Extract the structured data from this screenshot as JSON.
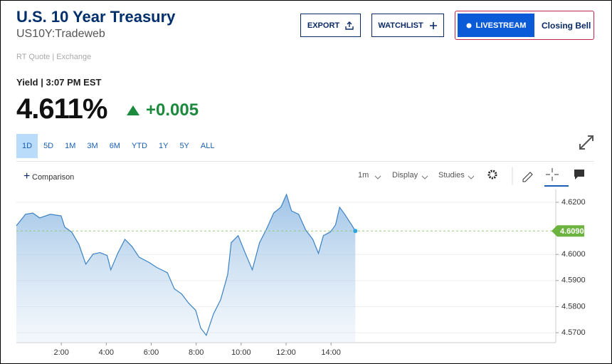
{
  "title": "U.S. 10 Year Treasury",
  "symbol": "US10Y:Tradeweb",
  "quote_source": "RT Quote | Exchange",
  "yield_label": "Yield | 3:07 PM EST",
  "price": "4.611%",
  "change": "+0.005",
  "buttons": {
    "export": "EXPORT",
    "watchlist": "WATCHLIST",
    "livestream": "LIVESTREAM",
    "closing_bell": "Closing Bell"
  },
  "ranges": [
    "1D",
    "5D",
    "1M",
    "3M",
    "6M",
    "YTD",
    "1Y",
    "5Y",
    "ALL"
  ],
  "toolbar": {
    "comparison": "Comparison",
    "interval": "1m",
    "display": "Display",
    "studies": "Studies"
  },
  "chart_data": {
    "type": "line",
    "color": "#3b82c4",
    "x": [
      0.0,
      0.41,
      0.73,
      1.04,
      1.51,
      1.99,
      2.15,
      2.46,
      2.78,
      3.09,
      3.41,
      3.72,
      4.04,
      4.2,
      4.51,
      4.83,
      5.14,
      5.46,
      5.93,
      6.25,
      6.72,
      7.03,
      7.35,
      7.67,
      7.98,
      8.2,
      8.45,
      8.77,
      9.09,
      9.4,
      9.56,
      9.87,
      10.19,
      10.5,
      10.82,
      11.14,
      11.45,
      11.77,
      12.02,
      12.24,
      12.56,
      12.87,
      13.19,
      13.44,
      13.66,
      13.97,
      14.2,
      14.38,
      14.61,
      14.92,
      15.08
    ],
    "values": [
      4.611,
      4.6154,
      4.6159,
      4.614,
      4.6154,
      4.6148,
      4.6105,
      4.6086,
      4.6039,
      4.5963,
      4.6001,
      4.6007,
      4.5996,
      4.5941,
      4.6004,
      4.6058,
      4.6031,
      4.599,
      4.5968,
      4.595,
      4.593,
      4.5868,
      4.5849,
      4.5813,
      4.5786,
      4.5718,
      4.569,
      4.5772,
      4.5827,
      4.5922,
      4.6045,
      4.6072,
      4.6004,
      4.5941,
      4.6045,
      4.6099,
      4.6159,
      4.6181,
      4.623,
      4.6167,
      4.6154,
      4.6094,
      4.6058,
      4.6004,
      4.6072,
      4.6086,
      4.6113,
      4.6181,
      4.6154,
      4.6113,
      4.609
    ],
    "xlim": [
      0,
      24
    ],
    "xticks": [
      {
        "value": 2,
        "label": "2:00"
      },
      {
        "value": 4,
        "label": "4:00"
      },
      {
        "value": 6,
        "label": "6:00"
      },
      {
        "value": 8,
        "label": "8:00"
      },
      {
        "value": 10,
        "label": "10:00"
      },
      {
        "value": 12,
        "label": "12:00"
      },
      {
        "value": 14,
        "label": "14:00"
      }
    ],
    "ylim": [
      4.5662,
      4.6249
    ],
    "yticks": [
      {
        "value": 4.62,
        "label": "4.6200"
      },
      {
        "value": 4.6,
        "label": "4.6000"
      },
      {
        "value": 4.59,
        "label": "4.5900"
      },
      {
        "value": 4.58,
        "label": "4.5800"
      },
      {
        "value": 4.57,
        "label": "4.5700"
      }
    ],
    "grid": true,
    "current_value": 4.609,
    "current_value_label": "4.6090"
  }
}
